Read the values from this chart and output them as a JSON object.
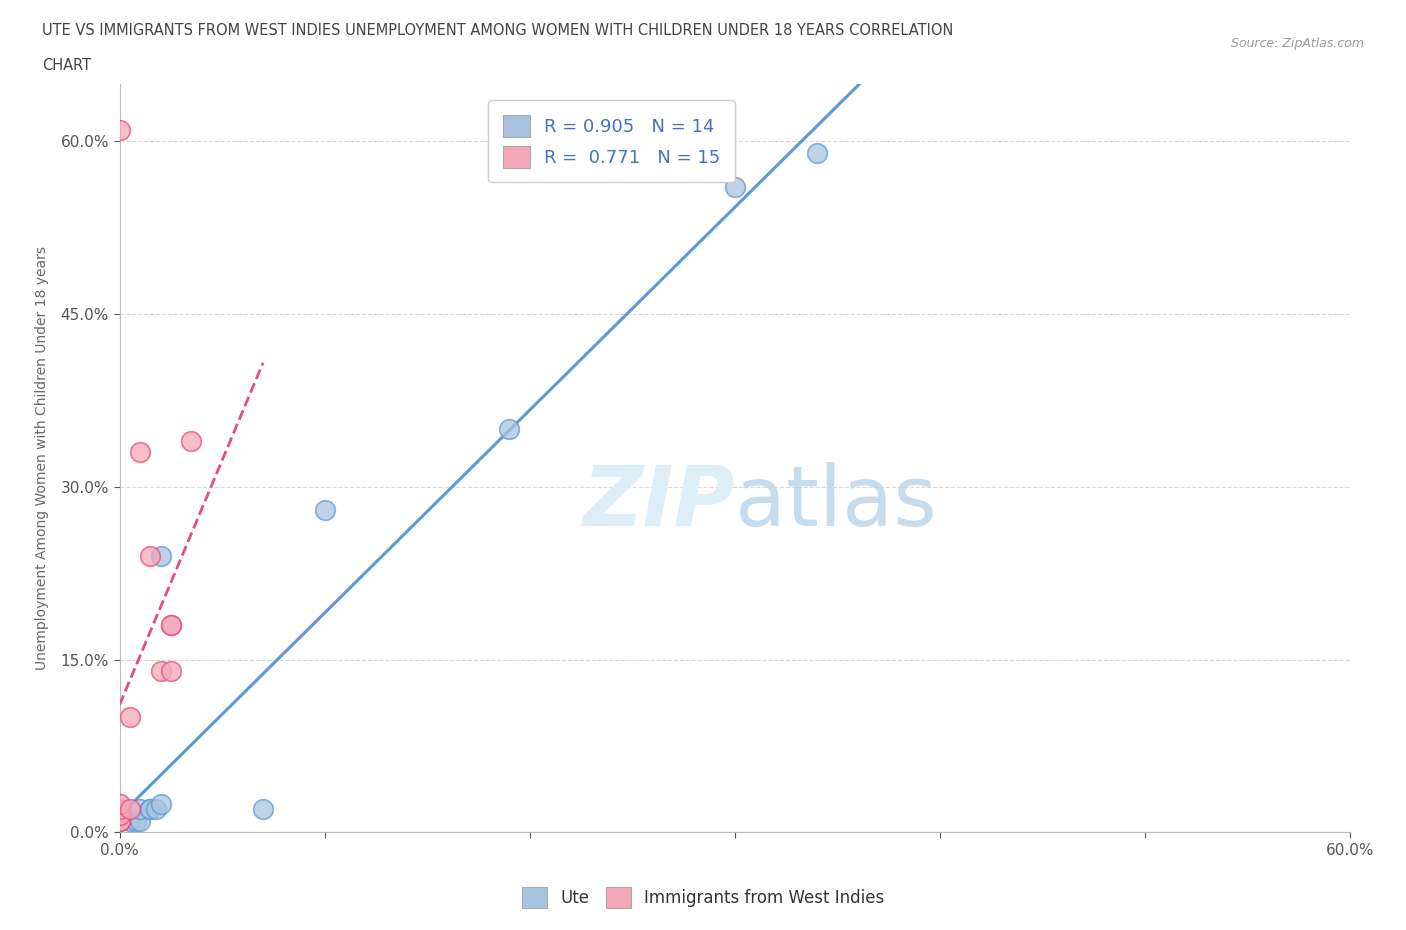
{
  "title_line1": "UTE VS IMMIGRANTS FROM WEST INDIES UNEMPLOYMENT AMONG WOMEN WITH CHILDREN UNDER 18 YEARS CORRELATION",
  "title_line2": "CHART",
  "source": "Source: ZipAtlas.com",
  "ylabel": "Unemployment Among Women with Children Under 18 years",
  "xmin": 0.0,
  "xmax": 0.6,
  "ymin": 0.0,
  "ymax": 0.65,
  "xticks": [
    0.0,
    0.1,
    0.2,
    0.3,
    0.4,
    0.5,
    0.6
  ],
  "yticks": [
    0.0,
    0.15,
    0.3,
    0.45,
    0.6
  ],
  "ytick_labels": [
    "0.0%",
    "15.0%",
    "30.0%",
    "45.0%",
    "60.0%"
  ],
  "xtick_labels": [
    "0.0%",
    "",
    "",
    "",
    "",
    "",
    "60.0%"
  ],
  "blue_R": 0.905,
  "blue_N": 14,
  "pink_R": 0.771,
  "pink_N": 15,
  "blue_scatter_x": [
    0.005,
    0.008,
    0.01,
    0.01,
    0.015,
    0.015,
    0.018,
    0.02,
    0.02,
    0.07,
    0.1,
    0.19,
    0.3,
    0.34
  ],
  "blue_scatter_y": [
    0.01,
    0.01,
    0.01,
    0.02,
    0.02,
    0.02,
    0.02,
    0.025,
    0.24,
    0.02,
    0.28,
    0.35,
    0.56,
    0.59
  ],
  "pink_scatter_x": [
    0.0,
    0.0,
    0.0,
    0.0,
    0.0,
    0.0,
    0.005,
    0.005,
    0.01,
    0.015,
    0.02,
    0.025,
    0.025,
    0.025,
    0.035
  ],
  "pink_scatter_y": [
    0.01,
    0.01,
    0.015,
    0.02,
    0.025,
    0.61,
    0.02,
    0.1,
    0.33,
    0.24,
    0.14,
    0.14,
    0.18,
    0.18,
    0.34
  ],
  "blue_color": "#a8c4e0",
  "pink_color": "#f4a8b8",
  "blue_line_color": "#5b9bd5",
  "pink_line_color": "#e84c7d",
  "watermark_color": "#ddeef8",
  "background_color": "#ffffff",
  "grid_color": "#d8d8d8",
  "tick_color": "#555555",
  "title_color": "#444444",
  "legend_text_color": "#4472c4",
  "axis_label_color": "#666666"
}
